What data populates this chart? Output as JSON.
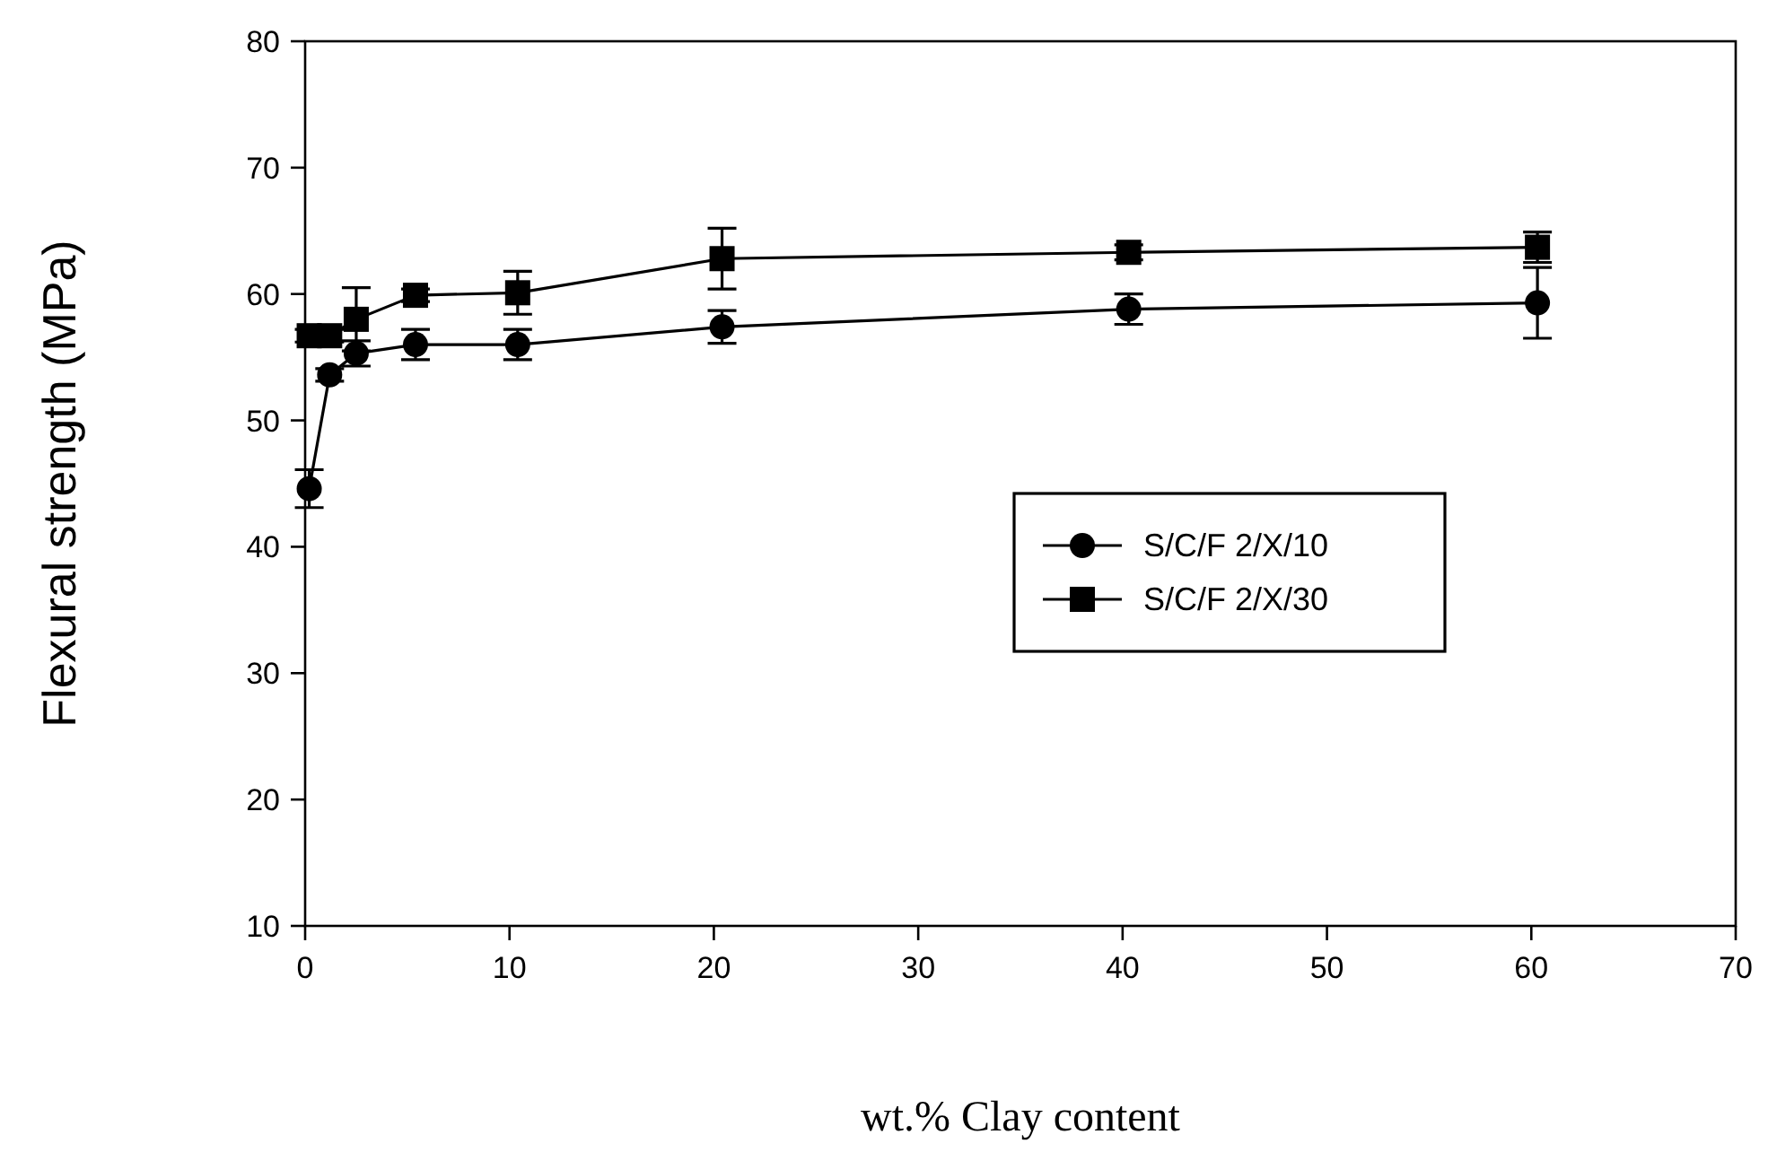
{
  "chart_data": {
    "type": "line",
    "xlabel": "wt.% Clay content",
    "ylabel": "Flexural strength (MPa)",
    "xlim": [
      0,
      70
    ],
    "ylim": [
      10,
      80
    ],
    "xticks": [
      0,
      10,
      20,
      30,
      40,
      50,
      60,
      70
    ],
    "yticks": [
      10,
      20,
      30,
      40,
      50,
      60,
      70,
      80
    ],
    "x": [
      0.2,
      1.2,
      2.5,
      5.4,
      10.4,
      20.4,
      40.3,
      60.3
    ],
    "legend": "right",
    "grid": false,
    "series": [
      {
        "name": "S/C/F 2/X/10",
        "color": "#000000",
        "marker": "circle",
        "values": [
          44.6,
          53.6,
          55.3,
          56,
          56,
          57.4,
          58.8,
          59.3
        ],
        "errors": [
          1.5,
          0.5,
          1,
          1.2,
          1.2,
          1.3,
          1.2,
          2.8
        ]
      },
      {
        "name": "S/C/F 2/X/30",
        "color": "#000000",
        "marker": "square",
        "values": [
          56.7,
          56.7,
          58,
          59.9,
          60.1,
          62.8,
          63.3,
          63.7
        ],
        "errors": [
          0.5,
          0.5,
          2.5,
          0.5,
          1.7,
          2.4,
          0.6,
          1.2
        ]
      }
    ]
  }
}
